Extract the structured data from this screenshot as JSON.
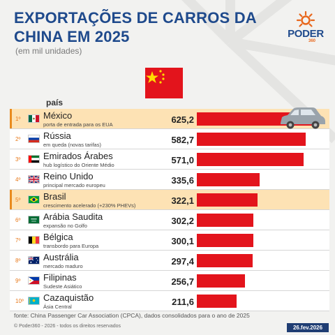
{
  "header": {
    "title_line1": "EXPORTAÇÕES DE CARROS DA",
    "title_line2": "CHINA EM 2025",
    "subtitle": "(em mil unidades)",
    "column_header": "país"
  },
  "brand": {
    "logo_text": "PODER",
    "logo_number": "360",
    "color_blue": "#1f4a8c",
    "color_orange": "#e8671c"
  },
  "colors": {
    "bar": "#e3141c",
    "highlight_row": "#fde2b4",
    "date_badge": "#1f3d73"
  },
  "chart_data": {
    "type": "bar",
    "orientation": "horizontal",
    "title": "EXPORTAÇÕES DE CARROS DA CHINA EM 2025",
    "subtitle": "(em mil unidades)",
    "categories": [
      "México",
      "Rússia",
      "Emirados Árabes",
      "Reino Unido",
      "Brasil",
      "Arábia Saudita",
      "Bélgica",
      "Austrália",
      "Filipinas",
      "Cazaquistão"
    ],
    "values": [
      625.2,
      582.7,
      571.0,
      335.6,
      322.1,
      302.2,
      300.1,
      297.4,
      256.7,
      211.6
    ],
    "value_labels": [
      "625,2",
      "582,7",
      "571,0",
      "335,6",
      "322,1",
      "302,2",
      "300,1",
      "297,4",
      "256,7",
      "211,6"
    ],
    "ranks": [
      "1º",
      "2º",
      "3º",
      "4º",
      "5º",
      "6º",
      "7º",
      "8º",
      "9º",
      "10º"
    ],
    "notes": [
      "porta de entrada para os EUA",
      "em queda (novas tarifas)",
      "hub logístico do Oriente Médio",
      "principal mercado europeu",
      "crescimento acelerado (+230% PHEVs)",
      "expansão no Golfo",
      "transbordo para Europa",
      "mercado maduro",
      "Sudeste Asiático",
      "Ásia Central"
    ],
    "flags": [
      "mexico-flag",
      "russia-flag",
      "uae-flag",
      "uk-flag",
      "brazil-flag",
      "saudi-flag",
      "belgium-flag",
      "australia-flag",
      "philippines-flag",
      "kazakhstan-flag"
    ],
    "highlighted": [
      true,
      false,
      false,
      false,
      true,
      false,
      false,
      false,
      false,
      false
    ],
    "xlim": [
      0,
      700
    ]
  },
  "footer": {
    "source": "fonte: China Passenger Car Association (CPCA), dados consolidados para o ano de 2025",
    "copyright": "© Poder360 - 2026 - todos os direitos reservados",
    "date": "26.fev.2026"
  }
}
